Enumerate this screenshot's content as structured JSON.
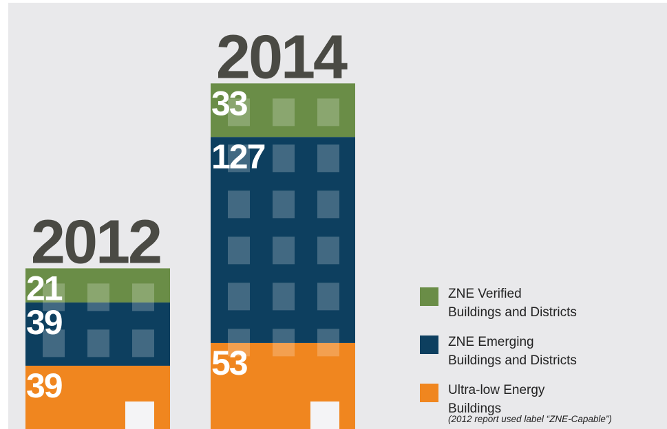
{
  "chart_data": {
    "type": "stacked-bar",
    "categories": [
      "2012",
      "2014"
    ],
    "series": [
      {
        "name": "Ultra-low Energy Buildings",
        "color": "#f0861f",
        "values": [
          39,
          53
        ]
      },
      {
        "name": "ZNE Emerging Buildings and Districts",
        "color": "#0d3f5f",
        "values": [
          39,
          127
        ]
      },
      {
        "name": "ZNE Verified Buildings and Districts",
        "color": "#6a8d47",
        "values": [
          21,
          33
        ]
      }
    ],
    "legend_note": "(2012 report used label “ZNE-Capable”)",
    "legend": "right"
  }
}
